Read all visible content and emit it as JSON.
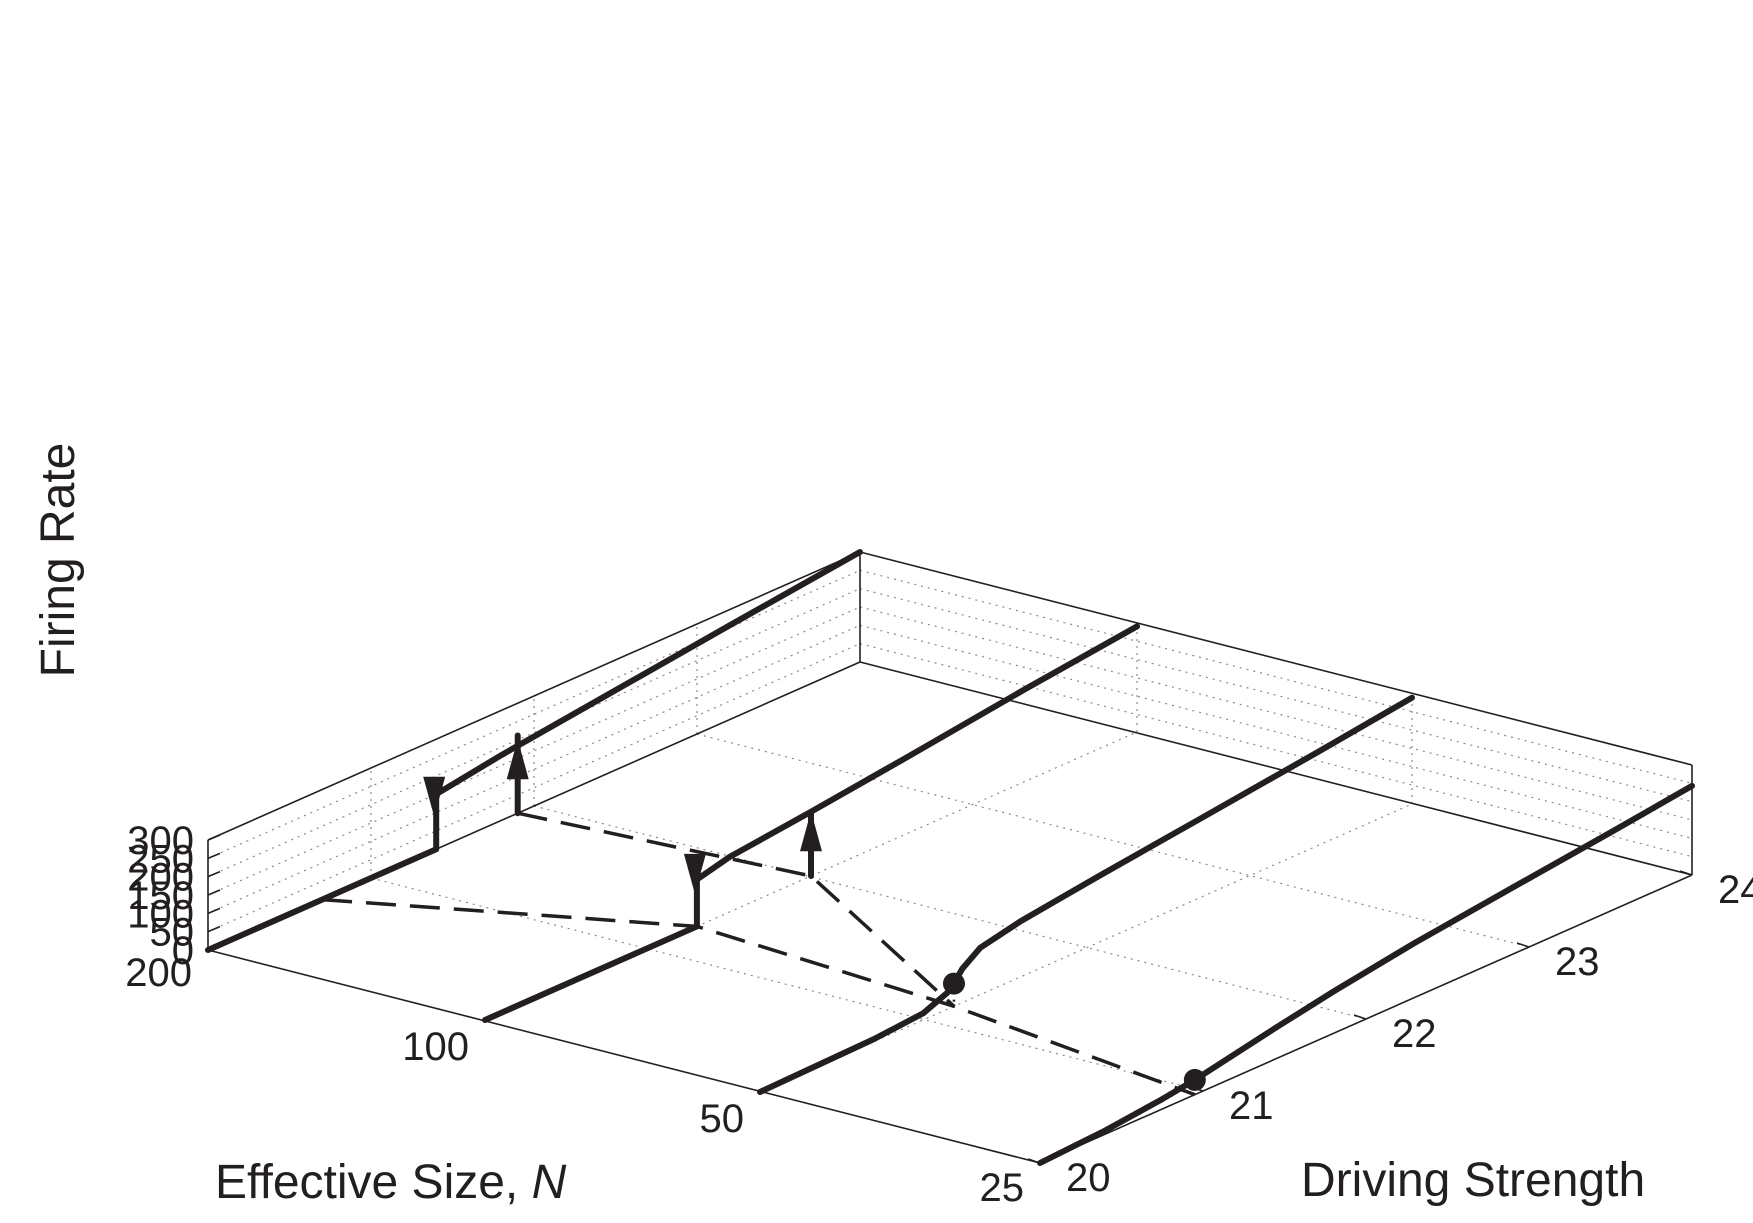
{
  "chart_data": {
    "type": "line",
    "title": "",
    "axes": {
      "x": {
        "label_text": "Effective Size, ",
        "label_italic": "N",
        "ticks": [
          200,
          100,
          50,
          25
        ]
      },
      "y": {
        "label": "Driving Strength",
        "ticks": [
          20,
          21,
          22,
          23,
          24
        ],
        "range": [
          20,
          24
        ]
      },
      "z": {
        "label": "Firing Rate",
        "ticks": [
          0,
          50,
          100,
          150,
          200,
          250,
          300
        ],
        "range": [
          0,
          300
        ]
      }
    },
    "grid": true,
    "series": [
      {
        "N": 200,
        "points": [
          [
            20,
            0
          ],
          [
            20.7,
            0
          ],
          [
            21.4,
            0
          ],
          [
            21.4,
            105
          ],
          [
            21.4,
            150
          ],
          [
            21.8,
            178
          ],
          [
            22.4,
            212
          ],
          [
            23.2,
            257
          ],
          [
            24,
            300
          ]
        ],
        "up_jump_at": 21.9
      },
      {
        "N": 100,
        "points": [
          [
            20,
            0
          ],
          [
            20.6,
            0
          ],
          [
            21.3,
            0
          ],
          [
            21.3,
            96
          ],
          [
            21.3,
            128
          ],
          [
            21.5,
            150
          ],
          [
            22.0,
            175
          ],
          [
            22.6,
            209
          ],
          [
            23.3,
            251
          ],
          [
            24,
            288
          ]
        ]
      },
      {
        "N": 50,
        "points": [
          [
            20,
            0
          ],
          [
            20.7,
            7
          ],
          [
            21.0,
            18
          ],
          [
            21.15,
            45
          ],
          [
            21.19,
            62
          ],
          [
            21.24,
            92
          ],
          [
            21.35,
            128
          ],
          [
            21.6,
            152
          ],
          [
            22.1,
            182
          ],
          [
            22.7,
            215
          ],
          [
            23.4,
            254
          ],
          [
            24,
            290
          ]
        ]
      },
      {
        "N": 25,
        "points": [
          [
            20,
            0
          ],
          [
            20.4,
            10
          ],
          [
            20.75,
            27
          ],
          [
            20.95,
            40
          ],
          [
            21.15,
            58
          ],
          [
            21.45,
            85
          ],
          [
            21.8,
            114
          ],
          [
            22.3,
            149
          ],
          [
            22.9,
            182
          ],
          [
            23.5,
            214
          ],
          [
            24,
            243
          ]
        ]
      }
    ],
    "markers": [
      {
        "N": 50,
        "driving": 21.19,
        "rate": 62
      },
      {
        "N": 25,
        "driving": 20.95,
        "rate": 40
      }
    ],
    "dashed_bifurcation_lines": [
      {
        "points": [
          [
            200,
            20.7
          ],
          [
            100,
            21.3
          ],
          [
            50,
            21.19
          ],
          [
            25,
            20.95
          ]
        ]
      },
      {
        "points": [
          [
            200,
            21.9
          ],
          [
            100,
            22.0
          ],
          [
            50,
            21.19
          ]
        ]
      }
    ]
  }
}
